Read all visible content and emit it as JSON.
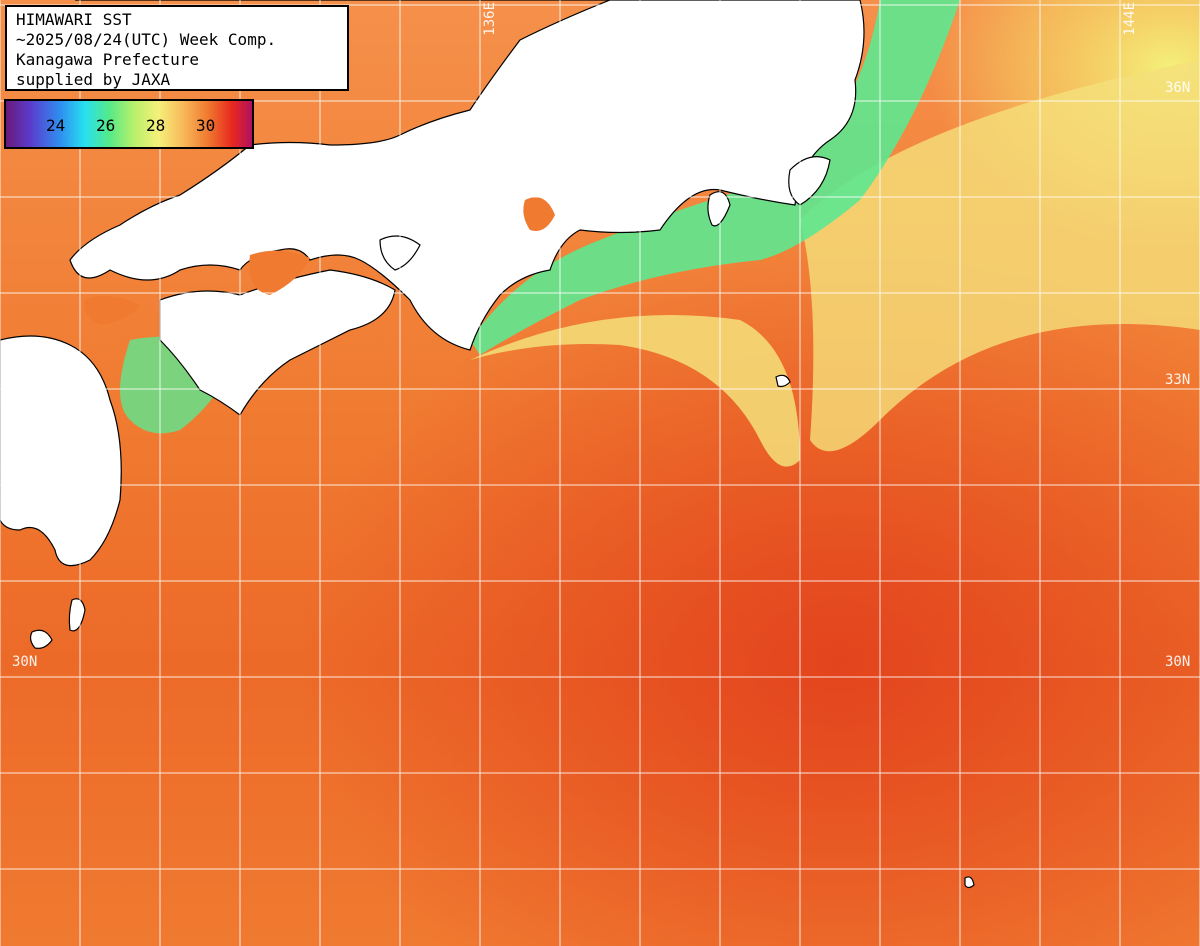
{
  "title": {
    "line1": "HIMAWARI SST",
    "line2": "~2025/08/24(UTC) Week Comp.",
    "line3": "Kanagawa Prefecture",
    "line4": "supplied by JAXA"
  },
  "legend": {
    "ticks": [
      "24",
      "26",
      "28",
      "30"
    ],
    "colors": [
      "#6a1a7a",
      "#2f8ef0",
      "#28e0f0",
      "#55ea88",
      "#f5f07a",
      "#f07a30",
      "#e8281e",
      "#b01060"
    ]
  },
  "grid_labels": {
    "lon_136": "136E",
    "lon_144": "144E",
    "lat_36_right": "36N",
    "lat_33_left": "33",
    "lat_33_right": "33N",
    "lat_30_left": "30N",
    "lat_30_right": "30N"
  },
  "colors": {
    "land": "#ffffff",
    "coastline": "#000000",
    "gridline": "#ffffff",
    "warm_sea": "#f07a30",
    "hot_sea": "#e84a1e",
    "cool_coastal": "#5ee890",
    "mild_sea": "#f5e07a"
  }
}
